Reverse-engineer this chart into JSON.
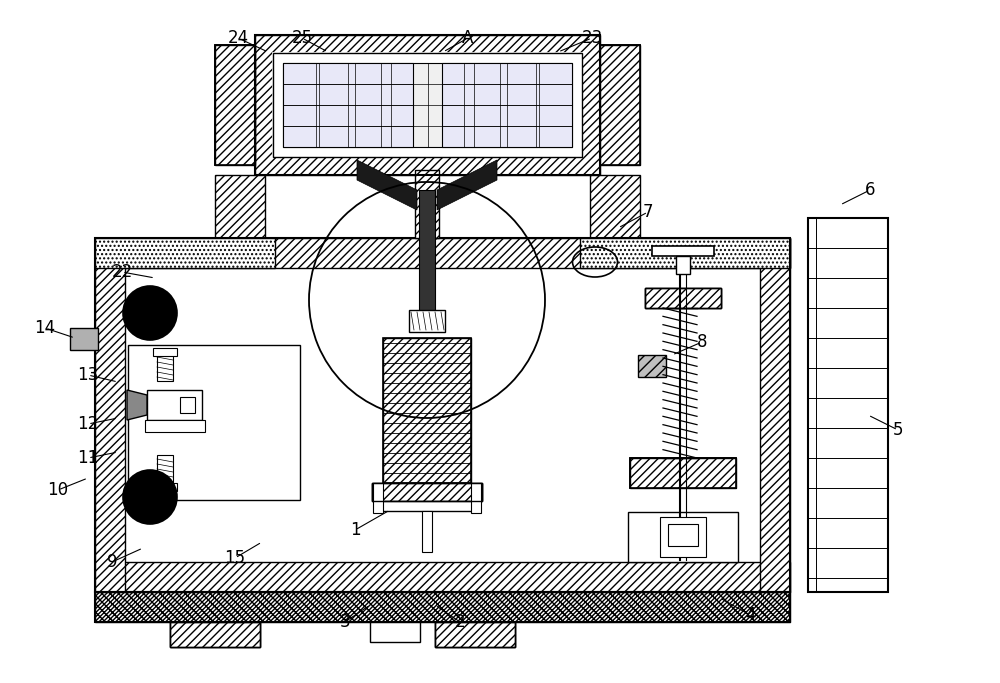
{
  "bg_color": "#ffffff",
  "figsize": [
    10.0,
    6.83
  ],
  "dpi": 100,
  "labels": {
    "1": [
      390,
      510,
      355,
      530
    ],
    "2": [
      435,
      605,
      460,
      622
    ],
    "3": [
      370,
      605,
      345,
      622
    ],
    "4": [
      720,
      598,
      750,
      615
    ],
    "5": [
      868,
      415,
      898,
      430
    ],
    "6": [
      840,
      205,
      870,
      190
    ],
    "7": [
      618,
      228,
      648,
      212
    ],
    "8": [
      672,
      355,
      702,
      342
    ],
    "9": [
      143,
      548,
      112,
      562
    ],
    "10": [
      88,
      478,
      58,
      490
    ],
    "11": [
      118,
      452,
      88,
      458
    ],
    "12": [
      118,
      418,
      88,
      424
    ],
    "13": [
      118,
      382,
      88,
      375
    ],
    "14": [
      75,
      338,
      45,
      328
    ],
    "15": [
      262,
      542,
      235,
      558
    ],
    "22": [
      155,
      278,
      122,
      272
    ],
    "23": [
      558,
      52,
      592,
      38
    ],
    "24": [
      268,
      52,
      238,
      38
    ],
    "25": [
      328,
      52,
      302,
      38
    ],
    "A": [
      443,
      52,
      468,
      38
    ]
  }
}
